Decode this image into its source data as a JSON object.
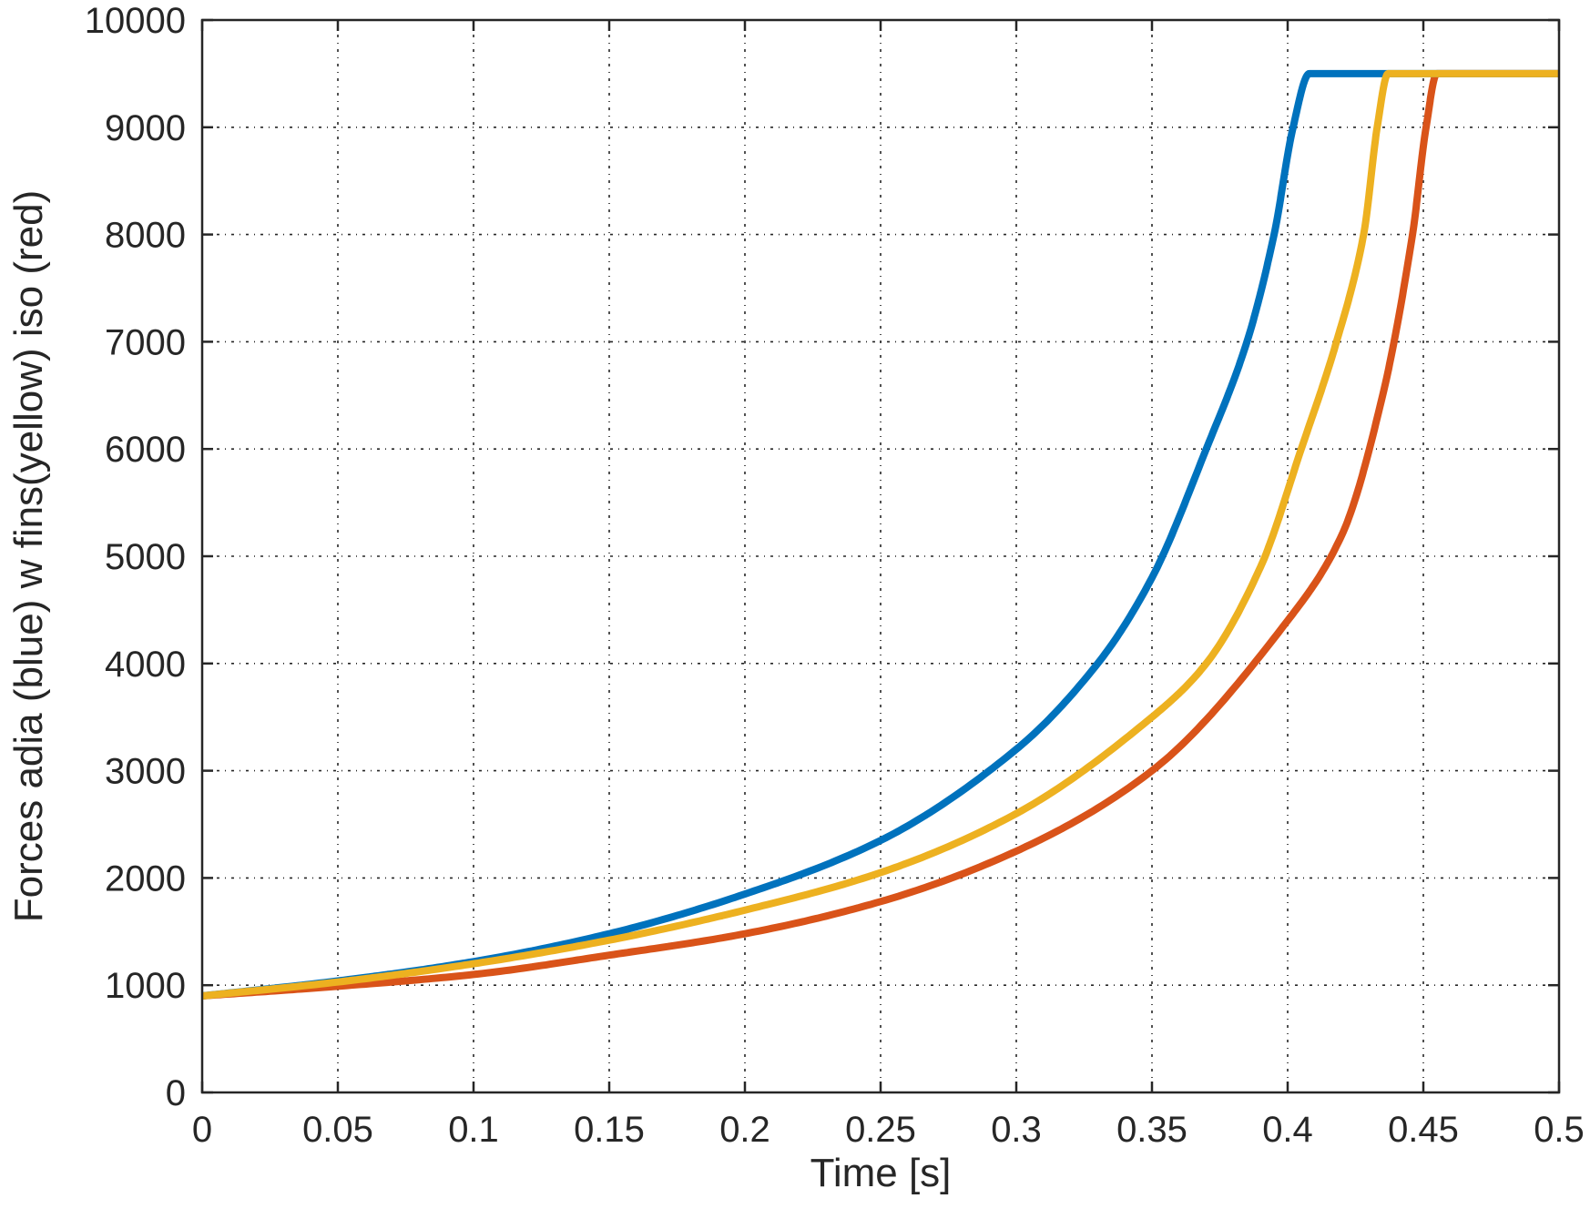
{
  "chart_data": {
    "type": "line",
    "title": "",
    "xlabel": "Time [s]",
    "ylabel": "Forces adia (blue) w fins(yellow) iso (red)",
    "xlim": [
      0,
      0.5
    ],
    "ylim": [
      0,
      10000
    ],
    "grid": true,
    "x_ticks": [
      "0",
      "0.05",
      "0.1",
      "0.15",
      "0.2",
      "0.25",
      "0.3",
      "0.35",
      "0.4",
      "0.45",
      "0.5"
    ],
    "y_ticks": [
      "0",
      "1000",
      "2000",
      "3000",
      "4000",
      "5000",
      "6000",
      "7000",
      "8000",
      "9000",
      "10000"
    ],
    "series": [
      {
        "color": "#0072BD",
        "x": [
          0,
          0.05,
          0.1,
          0.15,
          0.2,
          0.25,
          0.3,
          0.33,
          0.35,
          0.37,
          0.385,
          0.395,
          0.402,
          0.408,
          0.5
        ],
        "y": [
          900,
          1040,
          1220,
          1480,
          1850,
          2350,
          3200,
          4000,
          4800,
          6000,
          7000,
          8000,
          9000,
          9500,
          9500
        ]
      },
      {
        "color": "#EDB120",
        "x": [
          0,
          0.05,
          0.1,
          0.15,
          0.2,
          0.25,
          0.3,
          0.35,
          0.37,
          0.39,
          0.405,
          0.418,
          0.428,
          0.433,
          0.437,
          0.5
        ],
        "y": [
          900,
          1030,
          1200,
          1420,
          1700,
          2050,
          2600,
          3500,
          4000,
          4900,
          6000,
          7000,
          8000,
          9000,
          9500,
          9500
        ]
      },
      {
        "color": "#D95319",
        "x": [
          0,
          0.05,
          0.1,
          0.15,
          0.2,
          0.25,
          0.3,
          0.35,
          0.4,
          0.42,
          0.435,
          0.446,
          0.451,
          0.455,
          0.5
        ],
        "y": [
          900,
          990,
          1100,
          1280,
          1480,
          1780,
          2250,
          3000,
          4400,
          5200,
          6500,
          8000,
          9000,
          9500,
          9500
        ]
      }
    ]
  }
}
